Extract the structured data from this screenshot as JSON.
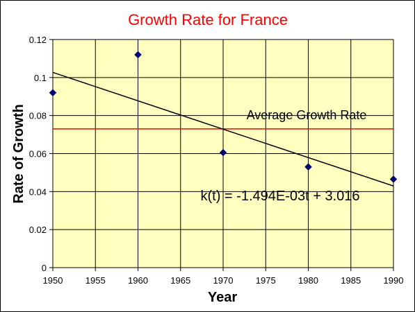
{
  "chart_data": {
    "type": "scatter",
    "title": "Growth Rate for France",
    "xlabel": "Year",
    "ylabel": "Rate of Growth",
    "xlim": [
      1950,
      1990
    ],
    "ylim": [
      0,
      0.12
    ],
    "x_ticks": [
      1950,
      1955,
      1960,
      1965,
      1970,
      1975,
      1980,
      1985,
      1990
    ],
    "x_tick_labels": [
      "1950",
      "1955",
      "1960",
      "1965",
      "1970",
      "1975",
      "1980",
      "1985",
      "1990"
    ],
    "y_ticks": [
      0,
      0.02,
      0.04,
      0.06,
      0.08,
      0.1,
      0.12
    ],
    "y_tick_labels": [
      "0",
      "0.02",
      "0.04",
      "0.06",
      "0.08",
      "0.1",
      "0.12"
    ],
    "grid": true,
    "points": [
      {
        "x": 1950,
        "y": 0.092
      },
      {
        "x": 1960,
        "y": 0.112
      },
      {
        "x": 1970,
        "y": 0.0605
      },
      {
        "x": 1980,
        "y": 0.053
      },
      {
        "x": 1990,
        "y": 0.0465
      }
    ],
    "trendline": {
      "label": "k(t) = -1.494E-03t + 3.016",
      "slope": -0.001494,
      "intercept": 3.016
    },
    "average_line": {
      "label": "Average Growth Rate",
      "y": 0.073
    },
    "colors": {
      "plot_background": "#ffffc0",
      "grid": "#000000",
      "points": "#00007a",
      "trendline": "#000000",
      "average_line": "#ff0000",
      "title": "#ff0000"
    }
  }
}
